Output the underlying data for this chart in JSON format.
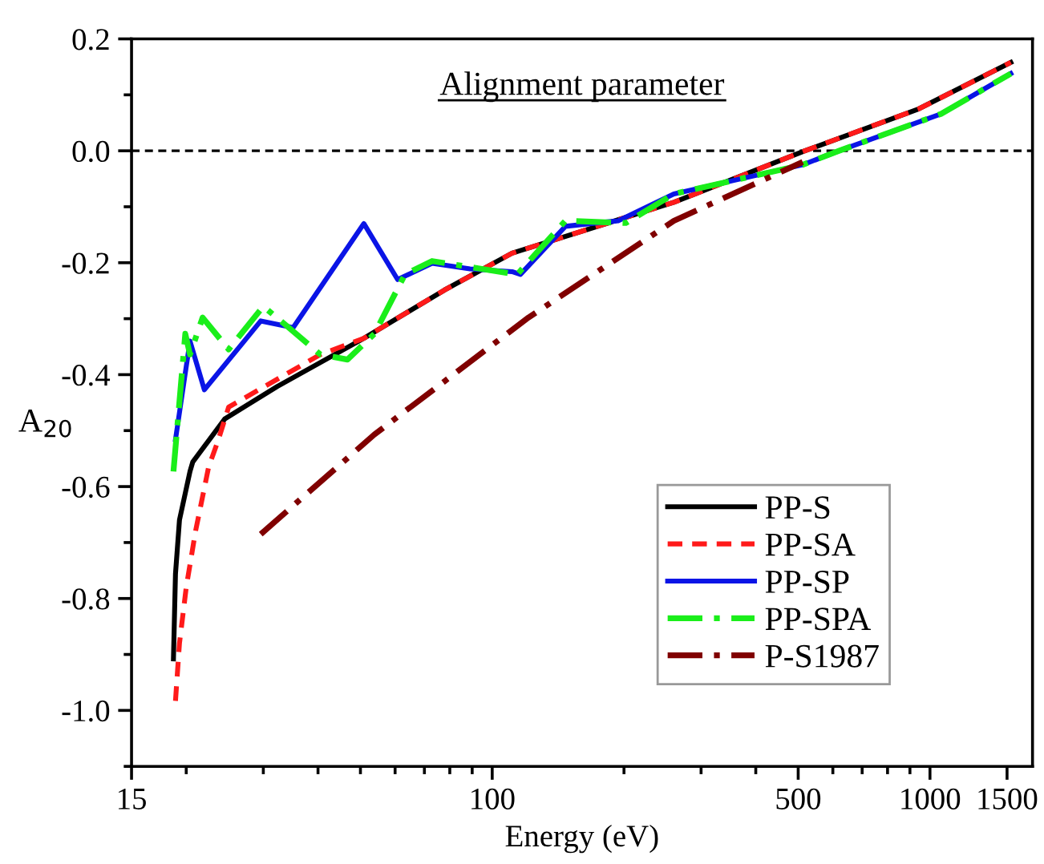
{
  "chart_data": {
    "type": "line",
    "xlabel": "Energy (eV)",
    "ylabel": "A$_{20}$",
    "annotations": [
      "Alignment parameter"
    ],
    "log": "x",
    "xlim": [
      15,
      1715
    ],
    "xticks": [
      15,
      100,
      500,
      1000,
      1500
    ],
    "ylim": [
      -1.1,
      0.2
    ],
    "yticks": [
      {
        "value": -1.0,
        "label": "-1.0"
      },
      {
        "value": -0.8,
        "label": "-0.8"
      },
      {
        "value": -0.6,
        "label": "-0.6"
      },
      {
        "value": -0.4,
        "label": "-0.4"
      },
      {
        "value": -0.2,
        "label": "-0.2"
      },
      {
        "value": 0.0,
        "label": "0.0"
      },
      {
        "value": 0.2,
        "label": "0.2"
      }
    ],
    "grid": false,
    "legend": "bottom right",
    "marker": "none",
    "ref_lines": [
      {
        "axis": "y",
        "value": 0,
        "color": "#000000",
        "line_style": "dashed"
      }
    ],
    "series": [
      {
        "name": "PP-S",
        "color": "#000000",
        "line_style": "solid",
        "x": [
          18.7,
          18.9,
          19.3,
          20.4,
          20.7,
          24.5,
          32.3,
          50.9,
          77.7,
          111,
          260,
          518,
          943,
          1530
        ],
        "values": [
          -0.908,
          -0.756,
          -0.66,
          -0.573,
          -0.556,
          -0.479,
          -0.421,
          -0.335,
          -0.249,
          -0.183,
          -0.092,
          0.0,
          0.075,
          0.158
        ]
      },
      {
        "name": "PP-SA",
        "color": "#ff1a1a",
        "line_style": "dashed",
        "x": [
          18.9,
          19.3,
          20.0,
          21.0,
          22.5,
          23.6,
          25.0,
          40.5,
          50.9,
          77.7,
          111,
          260,
          518,
          943,
          1530
        ],
        "values": [
          -0.983,
          -0.88,
          -0.78,
          -0.68,
          -0.565,
          -0.52,
          -0.458,
          -0.364,
          -0.335,
          -0.249,
          -0.183,
          -0.092,
          0.0,
          0.075,
          0.158
        ]
      },
      {
        "name": "PP-SP",
        "color": "#0a14e6",
        "line_style": "solid",
        "x": [
          18.9,
          20.4,
          22.0,
          29.6,
          35.1,
          50.9,
          60.8,
          72.9,
          89,
          111,
          116,
          147,
          194,
          260,
          512,
          620,
          1060,
          1530
        ],
        "values": [
          -0.516,
          -0.34,
          -0.427,
          -0.304,
          -0.316,
          -0.13,
          -0.23,
          -0.201,
          -0.211,
          -0.216,
          -0.221,
          -0.135,
          -0.125,
          -0.077,
          -0.025,
          0.0,
          0.066,
          0.138
        ]
      },
      {
        "name": "PP-SPA",
        "color": "#1aee1a",
        "line_style": "dashdot",
        "x": [
          18.7,
          19.9,
          20.4,
          21.8,
          25.0,
          30.0,
          34.3,
          40.5,
          46.7,
          53.8,
          63.2,
          72.9,
          94.6,
          114,
          147,
          202,
          260,
          512,
          620,
          1060,
          1530
        ],
        "values": [
          -0.573,
          -0.327,
          -0.364,
          -0.298,
          -0.355,
          -0.278,
          -0.316,
          -0.364,
          -0.373,
          -0.327,
          -0.221,
          -0.197,
          -0.211,
          -0.221,
          -0.125,
          -0.129,
          -0.077,
          -0.025,
          0.0,
          0.066,
          0.138
        ]
      },
      {
        "name": "P-S1987",
        "color": "#800000",
        "line_style": "dashdot",
        "x": [
          29.6,
          53.8,
          121,
          260,
          512
        ],
        "values": [
          -0.685,
          -0.507,
          -0.298,
          -0.125,
          -0.02
        ]
      }
    ]
  }
}
